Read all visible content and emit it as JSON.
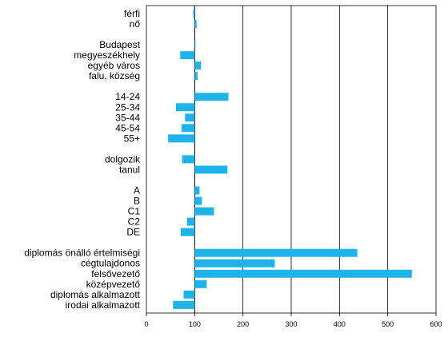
{
  "chart_data": {
    "type": "bar",
    "orientation": "horizontal",
    "title": "",
    "xlabel": "",
    "ylabel": "",
    "xlim": [
      0,
      600
    ],
    "x_ticks": [
      "0",
      "100",
      "200",
      "300",
      "400",
      "500",
      "600"
    ],
    "baseline": 100,
    "grid": "vertical",
    "legend": "none",
    "bar_color": "#1EB4EA",
    "categories": [
      "férfi",
      "nő",
      "",
      "Budapest",
      "megyeszékhely",
      "egyéb város",
      "falu, község",
      "",
      "14-24",
      "25-34",
      "35-44",
      "45-54",
      "55+",
      "",
      "dolgozik",
      "tanul",
      "",
      "A",
      "B",
      "C1",
      "C2",
      "DE",
      "",
      "diplomás önálló értelmiségi",
      "cégtulajdonos",
      "felsővezető",
      "középvezető",
      "diplomás alkalmazott",
      "irodai alkalmazott"
    ],
    "values": [
      97,
      104,
      null,
      101,
      70,
      113,
      106,
      null,
      170,
      61,
      80,
      73,
      45,
      null,
      74,
      168,
      null,
      110,
      115,
      140,
      84,
      71,
      null,
      437,
      266,
      550,
      125,
      77,
      55
    ]
  }
}
